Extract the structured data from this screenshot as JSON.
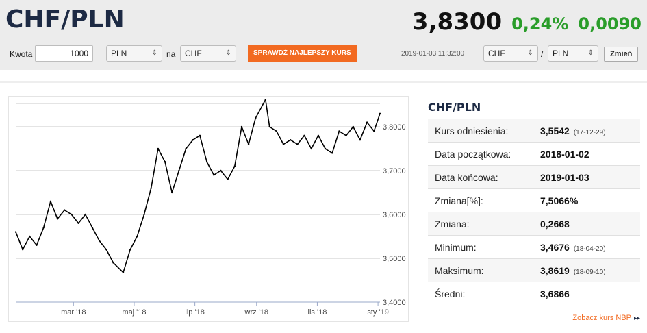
{
  "header": {
    "pair": "CHF/PLN",
    "price": "3,8300",
    "change_pct": "0,24%",
    "change_abs": "0,0090"
  },
  "converter": {
    "amount_label": "Kwota",
    "amount_value": "1000",
    "from_currency": "PLN",
    "to_label": "na",
    "to_currency": "CHF",
    "best_rate_button": "SPRAWDŹ NAJLEPSZY KURS",
    "timestamp": "2019-01-03 11:32:00",
    "pair_base": "CHF",
    "pair_separator": "/",
    "pair_quote": "PLN",
    "change_button": "Zmień"
  },
  "stats": {
    "title": "CHF/PLN",
    "rows": [
      {
        "label": "Kurs odniesienia:",
        "value": "3,5542",
        "date": "(17-12-29)"
      },
      {
        "label": "Data początkowa:",
        "value": "2018-01-02",
        "date": ""
      },
      {
        "label": "Data końcowa:",
        "value": "2019-01-03",
        "date": ""
      },
      {
        "label": "Zmiana[%]:",
        "value": "7,5066%",
        "date": ""
      },
      {
        "label": "Zmiana:",
        "value": "0,2668",
        "date": ""
      },
      {
        "label": "Minimum:",
        "value": "3,4676",
        "date": "(18-04-20)"
      },
      {
        "label": "Maksimum:",
        "value": "3,8619",
        "date": "(18-09-10)"
      },
      {
        "label": "Średni:",
        "value": "3,6866",
        "date": ""
      }
    ],
    "nbp_link": "Zobacz kurs NBP",
    "nbp_arrow": "▸▸"
  },
  "chart_data": {
    "type": "line",
    "x_tick_labels": [
      "mar '18",
      "maj '18",
      "lip '18",
      "wrz '18",
      "lis '18",
      "sty '19"
    ],
    "x_tick_dates": [
      "2018-03-01",
      "2018-05-01",
      "2018-07-01",
      "2018-09-01",
      "2018-11-01",
      "2019-01-01"
    ],
    "y_tick_labels": [
      "3,4000",
      "3,5000",
      "3,6000",
      "3,7000",
      "3,8000"
    ],
    "y_ticks": [
      3.4,
      3.5,
      3.6,
      3.7,
      3.8
    ],
    "ylim": [
      3.4,
      3.85
    ],
    "xlim": [
      "2018-01-02",
      "2019-01-03"
    ],
    "grid": true,
    "y_axis_side": "right",
    "line_color": "#000000",
    "series": [
      {
        "x": [
          "2018-01-02",
          "2018-01-09",
          "2018-01-16",
          "2018-01-23",
          "2018-01-30",
          "2018-02-06",
          "2018-02-13",
          "2018-02-20",
          "2018-02-27",
          "2018-03-06",
          "2018-03-13",
          "2018-03-20",
          "2018-03-27",
          "2018-04-03",
          "2018-04-10",
          "2018-04-20",
          "2018-04-27",
          "2018-05-04",
          "2018-05-11",
          "2018-05-18",
          "2018-05-25",
          "2018-06-01",
          "2018-06-08",
          "2018-06-15",
          "2018-06-22",
          "2018-06-29",
          "2018-07-06",
          "2018-07-13",
          "2018-07-20",
          "2018-07-27",
          "2018-08-03",
          "2018-08-10",
          "2018-08-17",
          "2018-08-24",
          "2018-08-31",
          "2018-09-10",
          "2018-09-14",
          "2018-09-21",
          "2018-09-28",
          "2018-10-05",
          "2018-10-12",
          "2018-10-19",
          "2018-10-26",
          "2018-11-02",
          "2018-11-09",
          "2018-11-16",
          "2018-11-23",
          "2018-11-30",
          "2018-12-07",
          "2018-12-14",
          "2018-12-21",
          "2018-12-28",
          "2019-01-03"
        ],
        "values": [
          3.56,
          3.52,
          3.55,
          3.53,
          3.57,
          3.63,
          3.59,
          3.61,
          3.6,
          3.58,
          3.6,
          3.57,
          3.54,
          3.52,
          3.49,
          3.4676,
          3.52,
          3.55,
          3.6,
          3.66,
          3.75,
          3.72,
          3.65,
          3.7,
          3.75,
          3.77,
          3.78,
          3.72,
          3.69,
          3.7,
          3.68,
          3.71,
          3.8,
          3.76,
          3.82,
          3.8619,
          3.8,
          3.79,
          3.76,
          3.77,
          3.76,
          3.78,
          3.75,
          3.78,
          3.75,
          3.74,
          3.79,
          3.78,
          3.8,
          3.77,
          3.81,
          3.79,
          3.83
        ]
      }
    ]
  }
}
